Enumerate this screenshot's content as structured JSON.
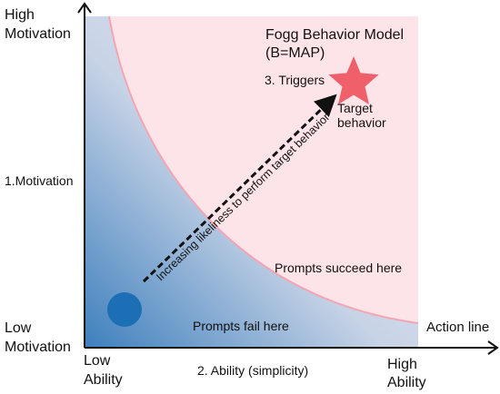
{
  "title_line1": "Fogg Behavior Model",
  "title_line2": "(B=MAP)",
  "y_axis": {
    "top_line1": "High",
    "top_line2": "Motivation",
    "middle": "1.Motivation",
    "bottom_line1": "Low",
    "bottom_line2": "Motivation"
  },
  "x_axis": {
    "left_line1": "Low",
    "left_line2": "Ability",
    "middle": "2. Ability (simplicity)",
    "right_line1": "High",
    "right_line2": "Ability"
  },
  "triggers_label": "3. Triggers",
  "target_line1": "Target",
  "target_line2": "behavior",
  "arrow_label": "Increasing likeliness to perform target behavior",
  "region_success": "Prompts succeed here",
  "region_fail": "Prompts fail here",
  "action_line_label": "Action line",
  "colors": {
    "success_region": "#fde4e8",
    "action_line": "#f5a4b4",
    "star": "#f0606a",
    "circle": "#1d6fb5",
    "gradient_dark": "#3d7fbd",
    "gradient_light": "#eeeaf2"
  },
  "icons": {
    "star": "star-icon",
    "circle": "circle-icon"
  }
}
